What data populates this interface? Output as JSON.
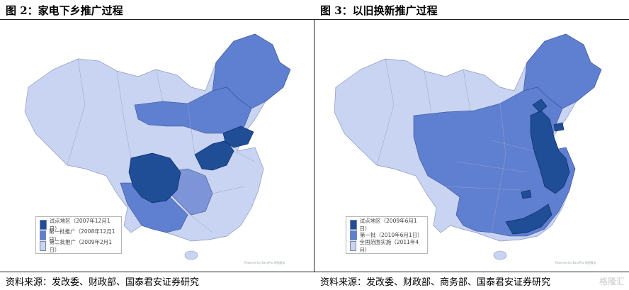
{
  "left": {
    "title": "图 2：家电下乡推广过程",
    "legend": [
      {
        "label": "试点地区（2007年12月1日）",
        "color": "#1f4e97"
      },
      {
        "label": "第一批推广（2008年12月1日）",
        "color": "#5f7fd1"
      },
      {
        "label": "第二批推广（2009年2月1日）",
        "color": "#c8d4f2"
      }
    ],
    "credit": "Powered by EasyPro 地图服务",
    "source": "资料来源：发改委、财政部、国泰君安证券研究"
  },
  "right": {
    "title": "图 3：以旧换新推广过程",
    "legend": [
      {
        "label": "试点地区（2009年6月1日）",
        "color": "#1f4e97"
      },
      {
        "label": "第一批（2010年6月1日）",
        "color": "#5f7fd1"
      },
      {
        "label": "全国范围实施（2011年4月）",
        "color": "#c8d4f2"
      }
    ],
    "credit": "Powered by EasyPro 地图服务",
    "source": "资料来源：发改委、财政部、商务部、国泰君安证券研究"
  },
  "watermark": "格隆汇"
}
